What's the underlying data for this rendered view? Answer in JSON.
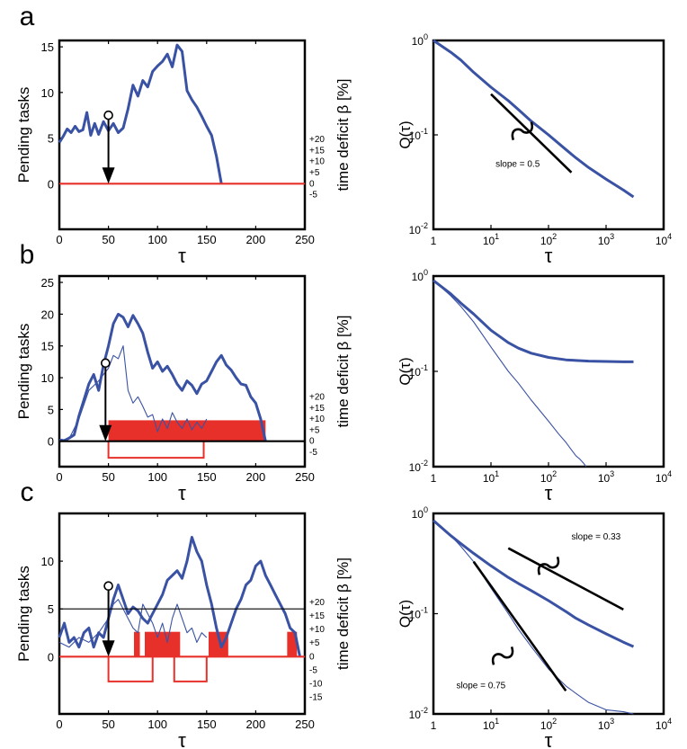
{
  "panel_letters": [
    "a",
    "b",
    "c"
  ],
  "colors": {
    "blue": "#3a52a3",
    "red": "#e8302a",
    "axis": "#000000",
    "black_curve": "#000000"
  },
  "chart_data": [
    {
      "id": "a-left",
      "type": "line",
      "xlabel": "τ",
      "ylabel": "Pending tasks",
      "y2label": "time deficit β [%]",
      "xlim": [
        0,
        250
      ],
      "ylim": [
        -5,
        15.7
      ],
      "xticks": [
        0,
        50,
        100,
        150,
        200,
        250
      ],
      "yticks": [
        0,
        5,
        10,
        15
      ],
      "y2ticks": [
        "+20",
        "+15",
        "+10",
        "+5",
        "0",
        "-5"
      ],
      "series": [
        {
          "style": "thick-blue",
          "x": [
            0,
            4,
            8,
            12,
            16,
            20,
            24,
            28,
            32,
            36,
            40,
            45,
            50,
            55,
            60,
            65,
            70,
            75,
            80,
            85,
            90,
            95,
            100,
            105,
            110,
            115,
            120,
            125,
            130,
            135,
            140,
            145,
            150,
            155,
            160,
            165
          ],
          "y": [
            4.5,
            5.2,
            6.0,
            5.6,
            6.3,
            5.7,
            5.9,
            7.8,
            5.3,
            6.6,
            5.4,
            6.8,
            5.8,
            6.6,
            5.6,
            6.1,
            8.2,
            10.8,
            9.6,
            11.3,
            10.6,
            12.3,
            12.9,
            13.4,
            14.2,
            12.8,
            15.2,
            14.5,
            10.2,
            9.2,
            8.4,
            7.4,
            6.3,
            5.3,
            3.0,
            0.0
          ]
        },
        {
          "style": "red-baseline",
          "x": [
            0,
            250
          ],
          "y": [
            0,
            0
          ]
        }
      ],
      "annotations": [
        {
          "type": "arrow-marker",
          "x": 50,
          "y_from": 7.5,
          "y_to": 0
        }
      ]
    },
    {
      "id": "a-right",
      "type": "line",
      "xscale": "log",
      "yscale": "log",
      "xlabel": "τ",
      "ylabel": "Q(τ)",
      "xlim": [
        1,
        10000
      ],
      "ylim": [
        0.01,
        1
      ],
      "xticks": [
        "1",
        "10^1",
        "10^2",
        "10^3",
        "10^4"
      ],
      "yticks": [
        "10^-2",
        "10^-1",
        "10^0"
      ],
      "series": [
        {
          "style": "thick-blue",
          "x": [
            1,
            2,
            3,
            5,
            10,
            20,
            30,
            50,
            100,
            200,
            300,
            500,
            1000,
            2000,
            3000
          ],
          "y": [
            1.0,
            0.75,
            0.62,
            0.46,
            0.32,
            0.23,
            0.185,
            0.14,
            0.1,
            0.07,
            0.057,
            0.045,
            0.034,
            0.026,
            0.022
          ]
        }
      ],
      "guides": [
        {
          "x": [
            10,
            250
          ],
          "y": [
            0.27,
            0.04
          ],
          "label": "slope = 0.5",
          "label_x": 12,
          "label_y": 0.046,
          "tilde_x": 35,
          "tilde_y": 0.11
        }
      ]
    },
    {
      "id": "b-left",
      "type": "line",
      "xlabel": "τ",
      "ylabel": "Pending tasks",
      "y2label": "time deficit β [%]",
      "xlim": [
        0,
        250
      ],
      "ylim": [
        -4,
        26
      ],
      "xticks": [
        0,
        50,
        100,
        150,
        200,
        250
      ],
      "yticks": [
        0,
        5,
        10,
        15,
        20,
        25
      ],
      "y2ticks": [
        "+20",
        "+15",
        "+10",
        "+5",
        "0",
        "-5"
      ],
      "series": [
        {
          "style": "thick-blue",
          "x": [
            0,
            5,
            10,
            15,
            20,
            25,
            30,
            35,
            40,
            45,
            50,
            55,
            60,
            65,
            70,
            75,
            80,
            85,
            90,
            95,
            100,
            105,
            110,
            115,
            120,
            125,
            130,
            135,
            140,
            145,
            150,
            155,
            160,
            165,
            170,
            175,
            180,
            185,
            190,
            195,
            200,
            205,
            210
          ],
          "y": [
            0.2,
            0.1,
            0.5,
            1.0,
            4.0,
            6.5,
            9.0,
            10.5,
            8.0,
            12.0,
            15.0,
            18.5,
            20.0,
            19.5,
            18.0,
            19.8,
            18.5,
            17.0,
            14.0,
            11.5,
            12.5,
            11.0,
            11.8,
            10.5,
            9.0,
            8.0,
            9.5,
            8.8,
            7.5,
            9.0,
            9.5,
            11.0,
            12.5,
            13.5,
            12.0,
            11.2,
            10.0,
            9.0,
            8.8,
            7.0,
            6.0,
            3.5,
            0.0
          ]
        },
        {
          "style": "thin-blue",
          "x": [
            0,
            10,
            20,
            30,
            40,
            45,
            50,
            55,
            60,
            65,
            70,
            75,
            80,
            85,
            90,
            95,
            100,
            105,
            110,
            115,
            120,
            125,
            130,
            135,
            140,
            145,
            150
          ],
          "y": [
            0.1,
            0.4,
            3.5,
            8.0,
            9.5,
            10.5,
            11.5,
            13.5,
            13.0,
            15.0,
            8.0,
            6.0,
            7.0,
            5.5,
            3.8,
            4.2,
            1.5,
            3.5,
            2.0,
            4.5,
            3.0,
            2.0,
            3.5,
            1.8,
            3.0,
            2.0,
            3.5
          ]
        },
        {
          "style": "black-baseline",
          "x": [
            0,
            250
          ],
          "y": [
            0,
            0
          ]
        }
      ],
      "deficit_fill": [
        {
          "x0": 50,
          "x1": 210,
          "y": 3.3
        }
      ],
      "deficit_outline": [
        {
          "x0": 50,
          "x1": 147,
          "y": -2.6
        }
      ],
      "annotations": [
        {
          "type": "arrow-marker",
          "x": 47,
          "y_from": 12.3,
          "y_to": 0
        }
      ]
    },
    {
      "id": "b-right",
      "type": "line",
      "xscale": "log",
      "yscale": "log",
      "xlabel": "τ",
      "ylabel": "Q(τ)",
      "xlim": [
        1,
        10000
      ],
      "ylim": [
        0.01,
        1
      ],
      "xticks": [
        "1",
        "10^1",
        "10^2",
        "10^3",
        "10^4"
      ],
      "yticks": [
        "10^-2",
        "10^-1",
        "10^0"
      ],
      "series": [
        {
          "style": "thick-blue",
          "x": [
            1,
            2,
            3,
            5,
            10,
            20,
            30,
            50,
            100,
            200,
            300,
            500,
            1000,
            2000,
            3000
          ],
          "y": [
            0.9,
            0.65,
            0.52,
            0.4,
            0.27,
            0.2,
            0.175,
            0.155,
            0.14,
            0.132,
            0.13,
            0.128,
            0.127,
            0.126,
            0.126
          ]
        },
        {
          "style": "thin-blue",
          "x": [
            1,
            2,
            3,
            5,
            10,
            20,
            30,
            50,
            100,
            150,
            200,
            250,
            300,
            350,
            400,
            450
          ],
          "y": [
            0.9,
            0.62,
            0.48,
            0.33,
            0.18,
            0.1,
            0.075,
            0.05,
            0.03,
            0.022,
            0.018,
            0.015,
            0.013,
            0.012,
            0.011,
            0.01
          ]
        }
      ]
    },
    {
      "id": "c-left",
      "type": "line",
      "xlabel": "τ",
      "ylabel": "Pending tasks",
      "y2label": "time deficit β [%]",
      "xlim": [
        0,
        250
      ],
      "ylim": [
        -6,
        15
      ],
      "xticks": [
        0,
        50,
        100,
        150,
        200,
        250
      ],
      "yticks": [
        0,
        5,
        10
      ],
      "y2ticks": [
        "+20",
        "+15",
        "+10",
        "+5",
        "0",
        "-5",
        "-10",
        "-15"
      ],
      "series": [
        {
          "style": "thick-blue",
          "x": [
            0,
            5,
            10,
            15,
            20,
            25,
            30,
            35,
            40,
            45,
            50,
            55,
            60,
            65,
            70,
            75,
            80,
            85,
            90,
            95,
            100,
            105,
            110,
            115,
            120,
            125,
            130,
            135,
            140,
            145,
            150,
            155,
            160,
            165,
            170,
            175,
            180,
            185,
            190,
            195,
            200,
            205,
            210,
            215,
            220,
            225,
            230,
            235,
            240,
            245
          ],
          "y": [
            2.0,
            3.5,
            1.5,
            2.0,
            1.0,
            2.5,
            3.0,
            1.0,
            2.5,
            2.0,
            4.0,
            6.0,
            7.5,
            6.0,
            4.5,
            5.2,
            4.8,
            4.0,
            3.5,
            4.5,
            5.5,
            6.5,
            8.0,
            8.5,
            9.0,
            8.2,
            10.0,
            12.5,
            11.0,
            10.0,
            7.5,
            5.5,
            3.0,
            1.0,
            2.0,
            3.5,
            5.0,
            6.0,
            7.5,
            8.0,
            9.5,
            10.0,
            8.5,
            7.5,
            6.5,
            5.5,
            4.5,
            3.0,
            2.5,
            0.0
          ]
        },
        {
          "style": "thin-blue",
          "x": [
            0,
            10,
            20,
            30,
            40,
            50,
            55,
            60,
            65,
            70,
            75,
            80,
            85,
            90,
            95,
            100,
            105,
            110,
            115,
            120,
            125,
            130,
            135,
            140,
            145,
            150
          ],
          "y": [
            1.5,
            1.0,
            2.0,
            1.5,
            2.5,
            4.0,
            5.5,
            6.0,
            5.0,
            4.0,
            3.0,
            2.5,
            5.5,
            4.5,
            3.5,
            2.0,
            3.5,
            1.5,
            4.0,
            5.5,
            4.0,
            2.5,
            3.0,
            1.5,
            2.5,
            2.0
          ]
        },
        {
          "style": "black-hline",
          "x": [
            0,
            250
          ],
          "y": [
            5,
            5
          ]
        },
        {
          "style": "red-baseline",
          "x": [
            0,
            250
          ],
          "y": [
            0,
            0
          ]
        }
      ],
      "deficit_fill": [
        {
          "x0": 76,
          "x1": 82,
          "y": 2.6
        },
        {
          "x0": 87,
          "x1": 123,
          "y": 2.6
        },
        {
          "x0": 152,
          "x1": 172,
          "y": 2.6
        },
        {
          "x0": 232,
          "x1": 242,
          "y": 2.6
        }
      ],
      "deficit_outline": [
        {
          "x0": 50,
          "x1": 95,
          "y": -2.6
        },
        {
          "x0": 117,
          "x1": 150,
          "y": -2.6
        }
      ],
      "annotations": [
        {
          "type": "arrow-marker",
          "x": 50,
          "y_from": 7.4,
          "y_to": 0
        }
      ]
    },
    {
      "id": "c-right",
      "type": "line",
      "xscale": "log",
      "yscale": "log",
      "xlabel": "τ",
      "ylabel": "Q(τ)",
      "xlim": [
        1,
        10000
      ],
      "ylim": [
        0.01,
        1
      ],
      "xticks": [
        "1",
        "10^1",
        "10^2",
        "10^3",
        "10^4"
      ],
      "yticks": [
        "10^-2",
        "10^-1",
        "10^0"
      ],
      "series": [
        {
          "style": "thick-blue",
          "x": [
            1,
            2,
            3,
            5,
            10,
            20,
            30,
            50,
            100,
            200,
            300,
            500,
            1000,
            2000,
            3000
          ],
          "y": [
            0.85,
            0.6,
            0.5,
            0.4,
            0.3,
            0.23,
            0.2,
            0.17,
            0.135,
            0.105,
            0.09,
            0.077,
            0.063,
            0.052,
            0.047
          ]
        },
        {
          "style": "thin-blue",
          "x": [
            1,
            2,
            3,
            5,
            10,
            20,
            30,
            50,
            100,
            200,
            300,
            500,
            1000,
            2000,
            3000
          ],
          "y": [
            0.85,
            0.6,
            0.47,
            0.33,
            0.18,
            0.1,
            0.07,
            0.047,
            0.028,
            0.019,
            0.016,
            0.013,
            0.011,
            0.0105,
            0.01
          ]
        }
      ],
      "guides": [
        {
          "x": [
            20,
            2000
          ],
          "y": [
            0.45,
            0.11
          ],
          "label": "slope = 0.33",
          "label_x": 250,
          "label_y": 0.55,
          "tilde_x": 100,
          "tilde_y": 0.3
        },
        {
          "x": [
            5,
            200
          ],
          "y": [
            0.33,
            0.017
          ],
          "label": "slope = 0.75",
          "label_x": 2.5,
          "label_y": 0.018,
          "tilde_x": 16,
          "tilde_y": 0.038
        }
      ]
    }
  ]
}
